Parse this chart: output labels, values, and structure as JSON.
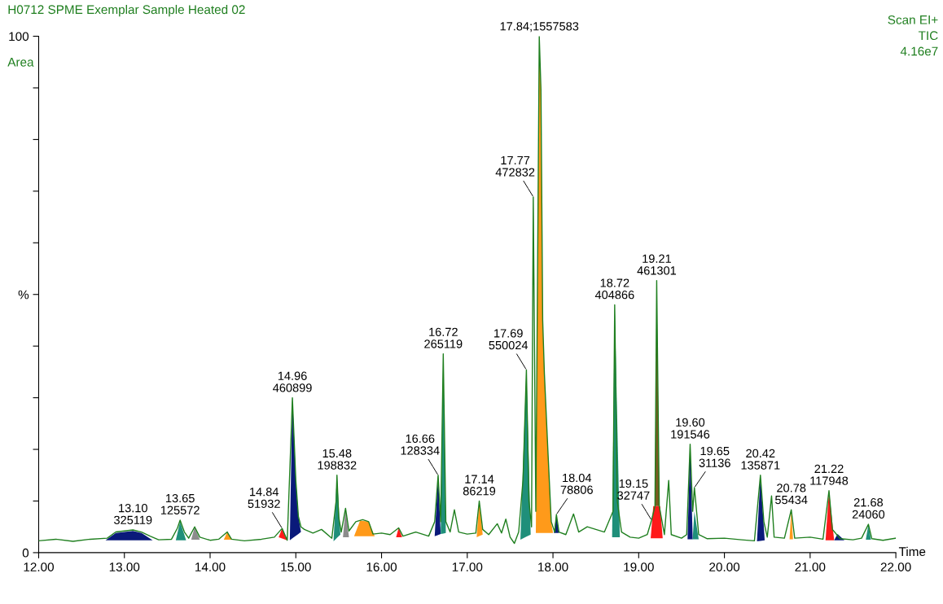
{
  "chart_data": {
    "type": "line",
    "title": "H0712 SPME Exemplar Sample Heated 02",
    "xlabel": "Time",
    "ylabel": "Area",
    "xlim": [
      12,
      22
    ],
    "ylim": [
      0,
      100
    ],
    "xticks": [
      {
        "value": 12,
        "label": "12.00"
      },
      {
        "value": 13,
        "label": "13.00"
      },
      {
        "value": 14,
        "label": "14.00"
      },
      {
        "value": 15,
        "label": "15.00"
      },
      {
        "value": 16,
        "label": "16.00"
      },
      {
        "value": 17,
        "label": "17.00"
      },
      {
        "value": 18,
        "label": "18.00"
      },
      {
        "value": 19,
        "label": "19.00"
      },
      {
        "value": 20,
        "label": "20.00"
      },
      {
        "value": 21,
        "label": "21.00"
      },
      {
        "value": 22,
        "label": "22.00"
      }
    ],
    "yticks": [
      0,
      {
        "value": 10,
        "label": null
      },
      {
        "value": 20,
        "label": null
      },
      {
        "value": 30,
        "label": null
      },
      {
        "value": 40,
        "label": null
      },
      {
        "value": 50,
        "label": "%"
      },
      {
        "value": 60,
        "label": null
      },
      {
        "value": 70,
        "label": null
      },
      {
        "value": 80,
        "label": null
      },
      {
        "value": 90,
        "label": null
      },
      100
    ],
    "grid": false,
    "marker": "none",
    "line_style": "solid",
    "series": [
      {
        "type": "area",
        "color": "#0a1a7a",
        "x": [
          12.78,
          12.9,
          13.0,
          13.1,
          13.2,
          13.33
        ],
        "values": [
          2.4,
          3.8,
          4.0,
          4.2,
          3.8,
          2.4
        ]
      },
      {
        "type": "area",
        "color": "#1f8f7a",
        "x": [
          13.6,
          13.65,
          13.72
        ],
        "values": [
          2.4,
          6.0,
          2.4
        ]
      },
      {
        "type": "area",
        "color": "#8c8c8c",
        "x": [
          13.78,
          13.82,
          13.88
        ],
        "values": [
          2.5,
          5.0,
          2.5
        ]
      },
      {
        "type": "area",
        "color": "#ff9a1a",
        "x": [
          14.16,
          14.2,
          14.25
        ],
        "values": [
          2.5,
          4.0,
          2.5
        ]
      },
      {
        "type": "area",
        "color": "#ff1a1a",
        "x": [
          14.8,
          14.84,
          14.9
        ],
        "values": [
          3.0,
          4.7,
          2.4
        ]
      },
      {
        "type": "area",
        "color": "#0a1a7a",
        "x": [
          14.93,
          14.96,
          14.98,
          15.0,
          15.03,
          15.06
        ],
        "values": [
          2.4,
          30.0,
          22.0,
          14.0,
          7.0,
          4.0
        ]
      },
      {
        "type": "area",
        "color": "#1f8f7a",
        "x": [
          15.44,
          15.48,
          15.52
        ],
        "values": [
          2.2,
          15.0,
          3.5
        ]
      },
      {
        "type": "area",
        "color": "#8c8c8c",
        "x": [
          15.55,
          15.58,
          15.62
        ],
        "values": [
          3.0,
          8.6,
          3.0
        ]
      },
      {
        "type": "area",
        "color": "#ff9a1a",
        "x": [
          15.68,
          15.75,
          15.85,
          15.92
        ],
        "values": [
          3.2,
          6.2,
          6.0,
          3.2
        ]
      },
      {
        "type": "area",
        "color": "#ff1a1a",
        "x": [
          16.17,
          16.2,
          16.24
        ],
        "values": [
          3.0,
          4.8,
          3.0
        ]
      },
      {
        "type": "area",
        "color": "#0a1a7a",
        "x": [
          16.62,
          16.66,
          16.69
        ],
        "values": [
          3.2,
          15.0,
          3.6
        ]
      },
      {
        "type": "area",
        "color": "#1f8f7a",
        "x": [
          16.69,
          16.72,
          16.75
        ],
        "values": [
          3.6,
          38.5,
          3.8
        ]
      },
      {
        "type": "area",
        "color": "#ff9a1a",
        "x": [
          17.11,
          17.14,
          17.18
        ],
        "values": [
          3.0,
          10.0,
          3.5
        ]
      },
      {
        "type": "area",
        "color": "#1f8f7a",
        "x": [
          17.62,
          17.69,
          17.74
        ],
        "values": [
          2.5,
          35.4,
          3.5
        ]
      },
      {
        "type": "area",
        "color": "#ff9a1a",
        "x": [
          17.8,
          17.84,
          17.86,
          17.88,
          17.9,
          17.94,
          17.98,
          18.0
        ],
        "values": [
          3.8,
          100,
          89.6,
          45,
          34.6,
          20,
          6,
          3.8
        ]
      },
      {
        "type": "area",
        "color": "#0a1a7a",
        "x": [
          18.01,
          18.04,
          18.07
        ],
        "values": [
          3.8,
          7.4,
          3.8
        ]
      },
      {
        "type": "area",
        "color": "#1f8f7a",
        "x": [
          18.69,
          18.72,
          18.78
        ],
        "values": [
          3.0,
          48.0,
          3.0
        ]
      },
      {
        "type": "area",
        "color": "#ff1a1a",
        "x": [
          19.14,
          19.17,
          19.25,
          19.28
        ],
        "values": [
          2.8,
          9.0,
          9.0,
          2.8
        ]
      },
      {
        "type": "area",
        "color": "#7a5a20",
        "x": [
          19.19,
          19.21,
          19.24
        ],
        "values": [
          9.0,
          52.7,
          9.0
        ]
      },
      {
        "type": "area",
        "color": "#0a1a7a",
        "x": [
          19.57,
          19.6,
          19.63
        ],
        "values": [
          2.6,
          21.0,
          2.6
        ]
      },
      {
        "type": "area",
        "color": "#1f8f7a",
        "x": [
          19.63,
          19.65,
          19.7
        ],
        "values": [
          2.6,
          8.0,
          2.6
        ]
      },
      {
        "type": "area",
        "color": "#0a1a7a",
        "x": [
          20.38,
          20.42,
          20.47
        ],
        "values": [
          2.2,
          15.0,
          2.4
        ]
      },
      {
        "type": "area",
        "color": "#ff9a1a",
        "x": [
          20.76,
          20.78,
          20.8
        ],
        "values": [
          2.6,
          8.3,
          2.6
        ]
      },
      {
        "type": "area",
        "color": "#ff1a1a",
        "x": [
          21.18,
          21.22,
          21.28
        ],
        "values": [
          2.4,
          12.0,
          2.4
        ]
      },
      {
        "type": "area",
        "color": "#0a1a7a",
        "x": [
          21.28,
          21.32,
          21.4
        ],
        "values": [
          2.4,
          3.6,
          2.4
        ]
      },
      {
        "type": "area",
        "color": "#1f8f7a",
        "x": [
          21.65,
          21.68,
          21.71
        ],
        "values": [
          2.5,
          5.5,
          2.5
        ]
      },
      {
        "color": "#1f7f1f",
        "x": [
          12.0,
          12.2,
          12.4,
          12.6,
          12.8,
          12.9,
          13.0,
          13.1,
          13.2,
          13.3,
          13.4,
          13.55,
          13.62,
          13.65,
          13.7,
          13.75,
          13.82,
          13.88,
          14.0,
          14.1,
          14.2,
          14.25,
          14.4,
          14.6,
          14.75,
          14.84,
          14.9,
          14.95,
          14.96,
          14.98,
          15.0,
          15.03,
          15.06,
          15.1,
          15.2,
          15.3,
          15.42,
          15.47,
          15.48,
          15.5,
          15.53,
          15.58,
          15.62,
          15.7,
          15.78,
          15.85,
          15.9,
          16.0,
          16.1,
          16.2,
          16.25,
          16.4,
          16.55,
          16.62,
          16.66,
          16.69,
          16.72,
          16.75,
          16.8,
          16.85,
          16.9,
          17.0,
          17.1,
          17.14,
          17.18,
          17.25,
          17.35,
          17.4,
          17.45,
          17.5,
          17.55,
          17.6,
          17.65,
          17.69,
          17.72,
          17.75,
          17.77,
          17.8,
          17.84,
          17.86,
          17.88,
          17.9,
          17.94,
          17.98,
          18.02,
          18.04,
          18.07,
          18.15,
          18.24,
          18.3,
          18.4,
          18.5,
          18.6,
          18.7,
          18.72,
          18.75,
          18.8,
          18.9,
          19.0,
          19.1,
          19.15,
          19.19,
          19.21,
          19.24,
          19.3,
          19.35,
          19.38,
          19.5,
          19.56,
          19.6,
          19.63,
          19.65,
          19.7,
          19.8,
          20.0,
          20.2,
          20.35,
          20.42,
          20.46,
          20.5,
          20.55,
          20.58,
          20.7,
          20.78,
          20.82,
          21.0,
          21.15,
          21.22,
          21.26,
          21.35,
          21.5,
          21.6,
          21.68,
          21.72,
          21.85,
          22.0
        ],
        "values": [
          2.3,
          2.6,
          2.2,
          2.6,
          2.8,
          4.0,
          4.2,
          4.4,
          4.0,
          3.2,
          2.5,
          2.6,
          4.8,
          6.3,
          4.0,
          2.8,
          5.0,
          3.0,
          2.4,
          2.6,
          4.0,
          2.6,
          2.3,
          2.6,
          3.0,
          4.7,
          2.4,
          25.0,
          30.0,
          22.0,
          14.0,
          7.0,
          5.0,
          4.5,
          3.8,
          4.5,
          2.8,
          10.0,
          15.0,
          7.0,
          4.0,
          8.6,
          4.2,
          6.0,
          6.4,
          6.0,
          3.6,
          3.8,
          3.5,
          4.8,
          3.2,
          4.0,
          3.2,
          6.0,
          15.0,
          6.0,
          38.5,
          6.0,
          4.0,
          8.3,
          4.0,
          3.6,
          3.8,
          10.0,
          4.5,
          3.5,
          5.6,
          3.8,
          6.5,
          3.0,
          1.8,
          4.0,
          14.0,
          35.4,
          10.0,
          5.0,
          68.9,
          8.0,
          100,
          89.6,
          45.0,
          34.6,
          20.0,
          6.0,
          4.0,
          7.4,
          4.0,
          3.5,
          7.5,
          4.0,
          5.0,
          4.5,
          4.0,
          8.0,
          48.0,
          10.0,
          4.0,
          3.0,
          2.8,
          3.5,
          6.3,
          9.0,
          52.7,
          9.0,
          3.5,
          14.0,
          3.5,
          2.8,
          3.5,
          21.0,
          8.0,
          12.6,
          3.5,
          2.7,
          2.8,
          2.5,
          2.3,
          15.0,
          6.0,
          3.0,
          11.0,
          3.0,
          2.8,
          8.3,
          2.8,
          3.0,
          2.6,
          12.0,
          4.5,
          2.7,
          2.5,
          2.8,
          5.5,
          2.7,
          2.4,
          2.8
        ]
      }
    ],
    "annotations": [
      "Scan EI+",
      "TIC",
      "4.16e7",
      {
        "text": "13.10\n325119",
        "x": 13.1,
        "y": 4.4
      },
      {
        "text": "13.65\n125572",
        "x": 13.65,
        "y": 6.3
      },
      {
        "text": "14.84\n51932",
        "x": 14.84,
        "y": 4.7
      },
      {
        "text": "14.96\n460899",
        "x": 14.96,
        "y": 30.0
      },
      {
        "text": "15.48\n198832",
        "x": 15.48,
        "y": 15.0
      },
      {
        "text": "16.66\n128334",
        "x": 16.66,
        "y": 15.0
      },
      {
        "text": "16.72\n265119",
        "x": 16.72,
        "y": 38.5
      },
      {
        "text": "17.14\n86219",
        "x": 17.14,
        "y": 10.0
      },
      {
        "text": "17.69\n550024",
        "x": 17.69,
        "y": 35.4
      },
      {
        "text": "17.77\n472832",
        "x": 17.77,
        "y": 68.9
      },
      {
        "text": "17.84;1557583",
        "x": 17.84,
        "y": 100
      },
      {
        "text": "18.04\n78806",
        "x": 18.04,
        "y": 7.4
      },
      {
        "text": "18.72\n404866",
        "x": 18.72,
        "y": 48.0
      },
      {
        "text": "19.15\n32747",
        "x": 19.15,
        "y": 6.3
      },
      {
        "text": "19.21\n461301",
        "x": 19.21,
        "y": 52.7
      },
      {
        "text": "19.60\n191546",
        "x": 19.6,
        "y": 21.0
      },
      {
        "text": "19.65\n31136",
        "x": 19.65,
        "y": 12.6
      },
      {
        "text": "20.42\n135871",
        "x": 20.42,
        "y": 15.0
      },
      {
        "text": "20.78\n55434",
        "x": 20.78,
        "y": 8.3
      },
      {
        "text": "21.22\n117948",
        "x": 21.22,
        "y": 12.0
      },
      {
        "text": "21.68\n24060",
        "x": 21.68,
        "y": 5.5
      }
    ]
  }
}
